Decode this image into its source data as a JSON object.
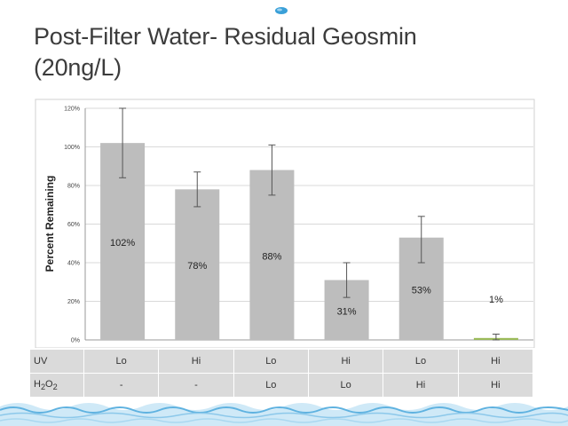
{
  "slide": {
    "title_line1": "Post-Filter Water- Residual Geosmin",
    "title_line2": "(20ng/L)"
  },
  "chart_data": {
    "type": "bar",
    "ylabel": "Percent Remaining",
    "ylim": [
      0,
      120
    ],
    "yticks": [
      "0%",
      "20%",
      "40%",
      "60%",
      "80%",
      "100%",
      "120%"
    ],
    "categories": [
      "UV Lo / H2O2 -",
      "UV Hi / H2O2 -",
      "UV Lo / H2O2 Lo",
      "UV Hi / H2O2 Lo",
      "UV Lo / H2O2 Hi",
      "UV Hi / H2O2 Hi"
    ],
    "values": [
      102,
      78,
      88,
      31,
      53,
      1
    ],
    "data_labels": [
      "102%",
      "78%",
      "88%",
      "31%",
      "53%",
      "1%"
    ],
    "error_low": [
      84,
      69,
      75,
      22,
      40,
      0
    ],
    "error_high": [
      120,
      87,
      101,
      40,
      64,
      3
    ],
    "bar_color": "#bdbdbd",
    "highlight_color": "#9bbb59",
    "highlight_index": 5,
    "grid": true
  },
  "conditions": {
    "uv_label": "UV",
    "h2o2_label_main": "H",
    "h2o2_sub1": "2",
    "h2o2_mid": "O",
    "h2o2_sub2": "2",
    "uv": [
      "Lo",
      "Hi",
      "Lo",
      "Hi",
      "Lo",
      "Hi"
    ],
    "h2o2": [
      "-",
      "-",
      "Lo",
      "Lo",
      "Hi",
      "Hi"
    ]
  },
  "decor": {
    "accent": "#3aa0d8",
    "wave_color": "#5fb2e0"
  }
}
